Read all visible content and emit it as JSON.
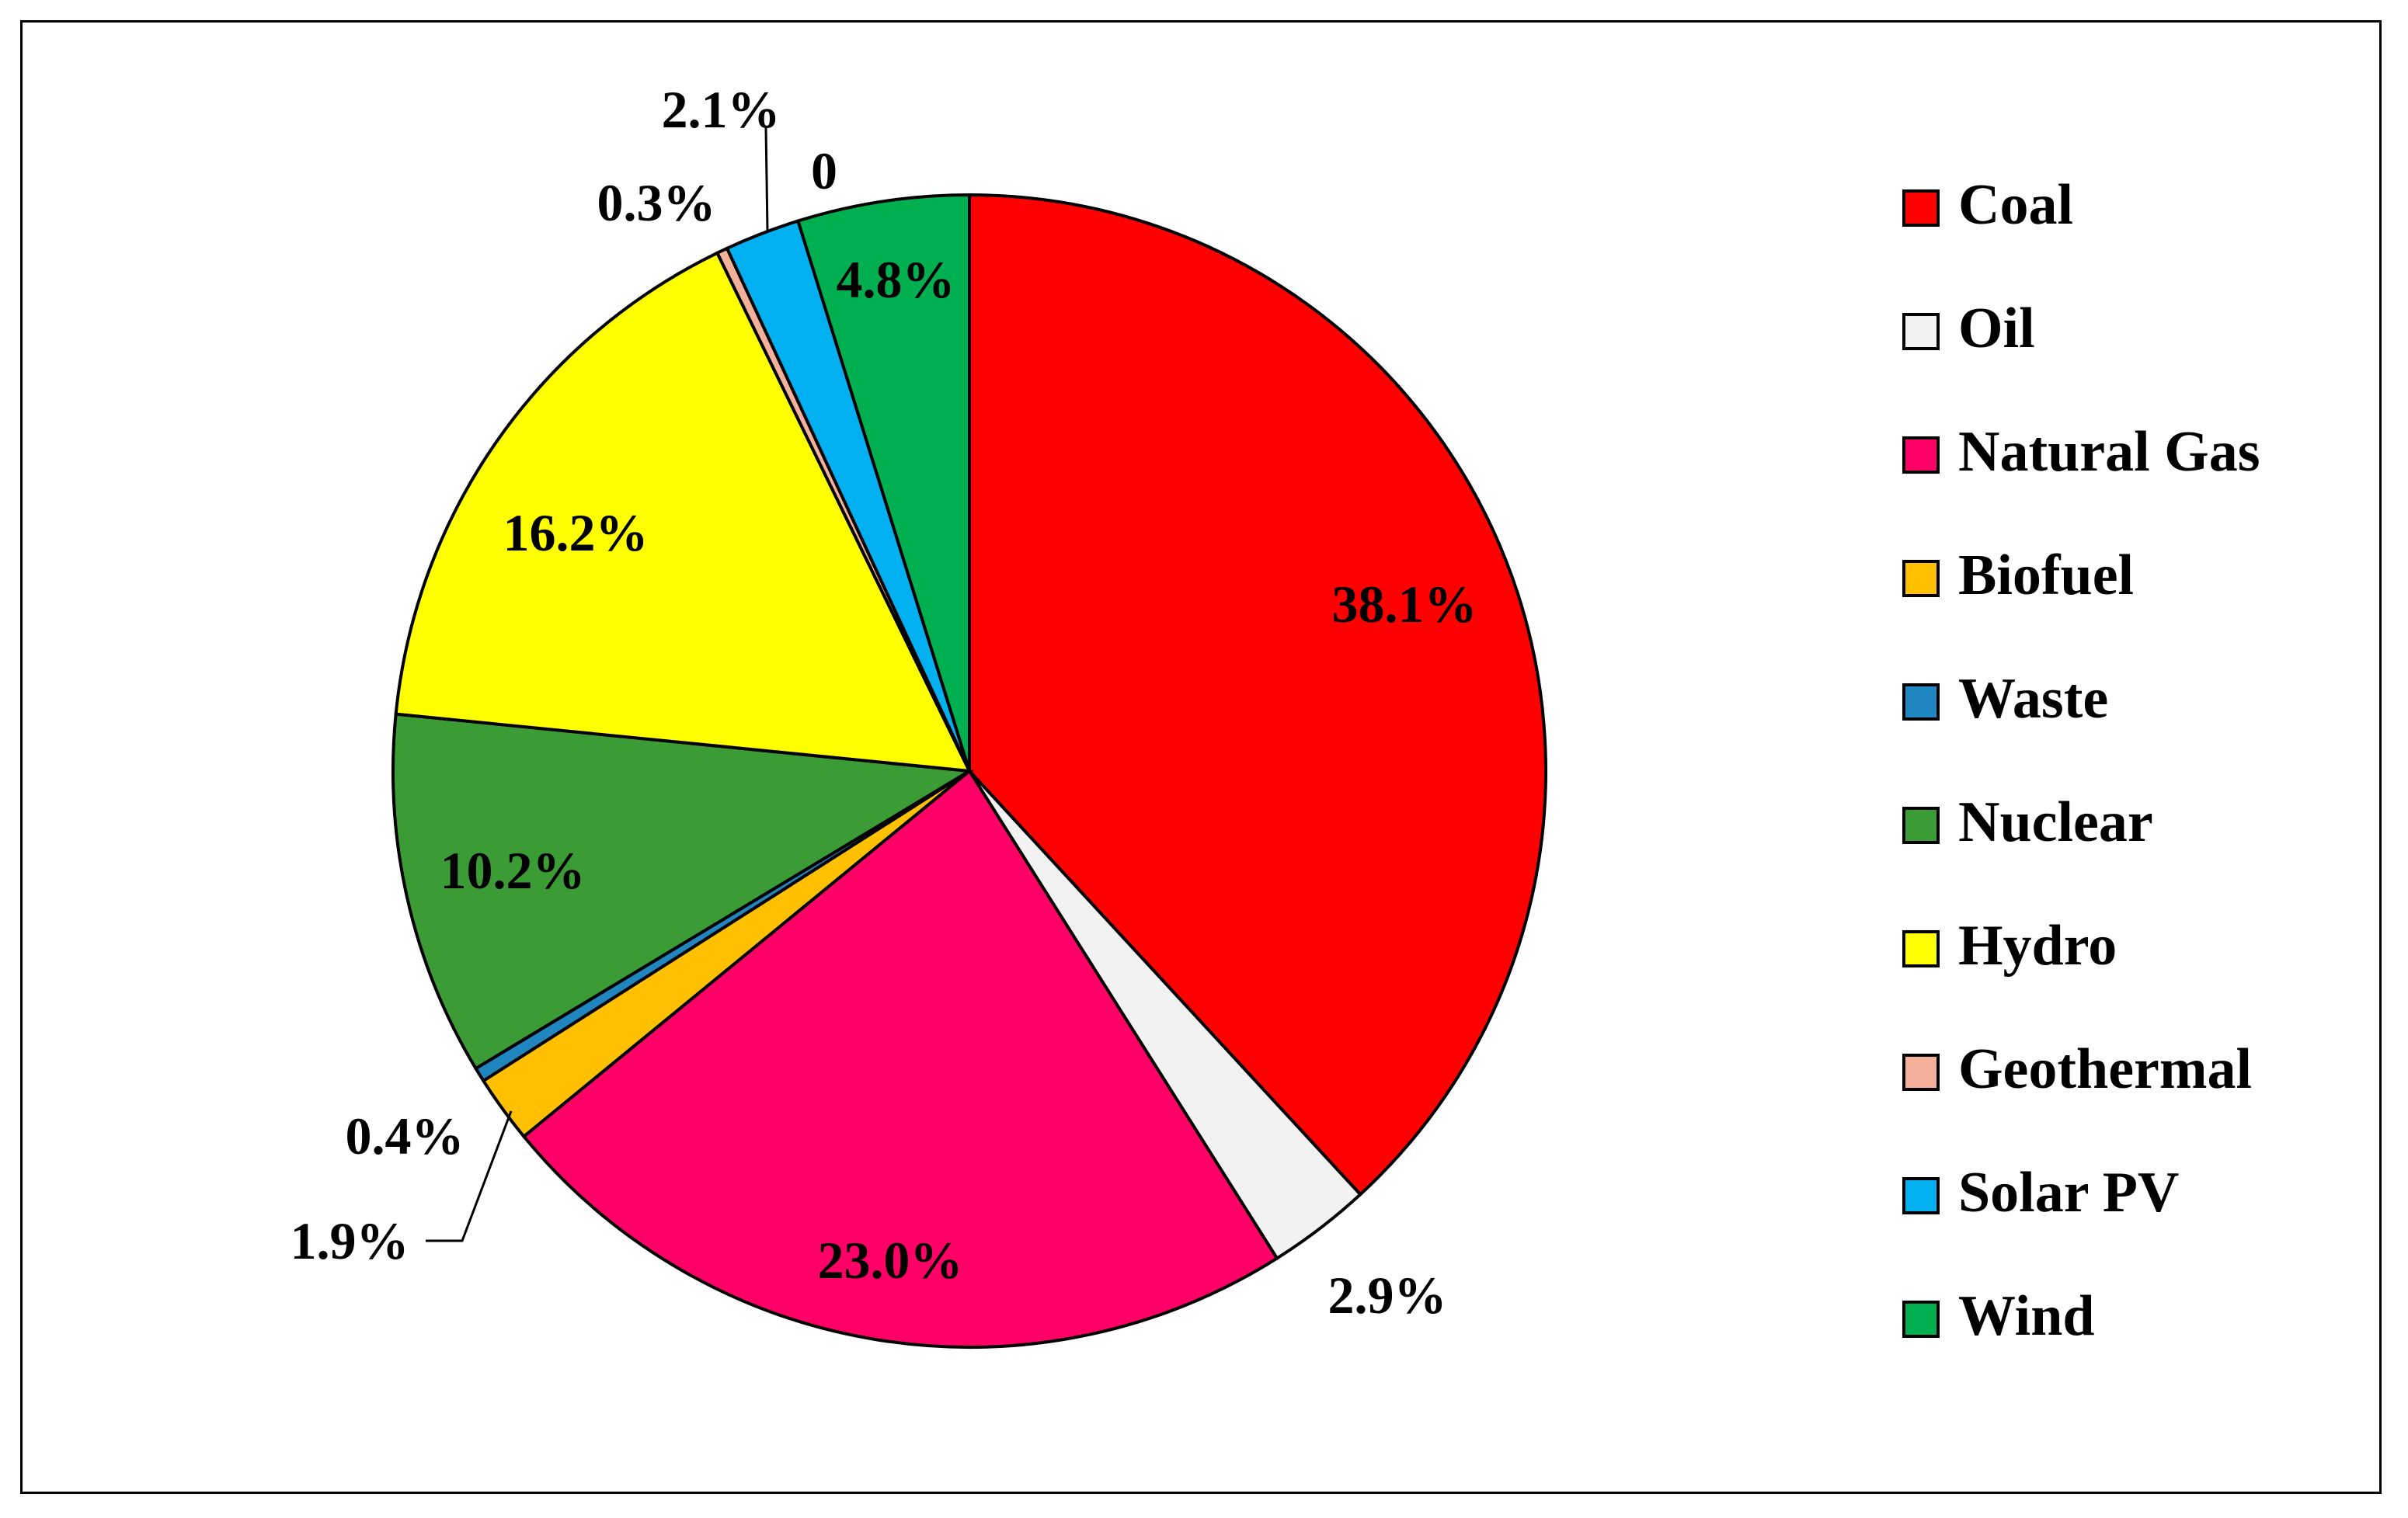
{
  "chart_data": {
    "type": "pie",
    "title": "",
    "categories": [
      "Coal",
      "Oil",
      "Natural Gas",
      "Biofuel",
      "Waste",
      "Nuclear",
      "Hydro",
      "Geothermal",
      "Solar PV",
      "Wind"
    ],
    "values": [
      38.1,
      2.9,
      23.0,
      1.9,
      0.4,
      10.2,
      16.2,
      0.3,
      2.1,
      4.8
    ],
    "labels": [
      "38.1%",
      "2.9%",
      "23.0%",
      "1.9%",
      "0.4%",
      "10.2%",
      "16.2%",
      "0.3%",
      "2.1%",
      "4.8%"
    ],
    "extra_labels": [
      "0"
    ],
    "colors": [
      "#FF0000",
      "#F2F2F2",
      "#FF0066",
      "#FFC000",
      "#1F86C0",
      "#3B9B34",
      "#FFFF00",
      "#F4B09A",
      "#00B0F0",
      "#00B050"
    ],
    "start_angle": "12 o'clock",
    "direction": "clockwise",
    "legend": "right"
  }
}
